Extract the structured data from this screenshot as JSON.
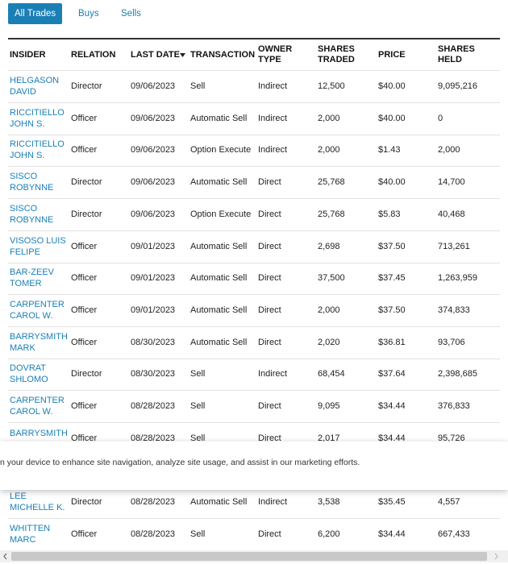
{
  "tabs": [
    "All Trades",
    "Buys",
    "Sells"
  ],
  "table": {
    "columns": [
      "INSIDER",
      "RELATION",
      "LAST DATE",
      "TRANSACTION",
      "OWNER TYPE",
      "SHARES TRADED",
      "PRICE",
      "SHARES HELD"
    ],
    "rows": [
      [
        "HELGASON DAVID",
        "Director",
        "09/06/2023",
        "Sell",
        "Indirect",
        "12,500",
        "$40.00",
        "9,095,216"
      ],
      [
        "RICCITIELLO JOHN S.",
        "Officer",
        "09/06/2023",
        "Automatic Sell",
        "Indirect",
        "2,000",
        "$40.00",
        "0"
      ],
      [
        "RICCITIELLO JOHN S.",
        "Officer",
        "09/06/2023",
        "Option Execute",
        "Indirect",
        "2,000",
        "$1.43",
        "2,000"
      ],
      [
        "SISCO ROBYNNE",
        "Director",
        "09/06/2023",
        "Automatic Sell",
        "Direct",
        "25,768",
        "$40.00",
        "14,700"
      ],
      [
        "SISCO ROBYNNE",
        "Director",
        "09/06/2023",
        "Option Execute",
        "Direct",
        "25,768",
        "$5.83",
        "40,468"
      ],
      [
        "VISOSO LUIS FELIPE",
        "Officer",
        "09/01/2023",
        "Automatic Sell",
        "Direct",
        "2,698",
        "$37.50",
        "713,261"
      ],
      [
        "BAR-ZEEV TOMER",
        "Officer",
        "09/01/2023",
        "Automatic Sell",
        "Direct",
        "37,500",
        "$37.45",
        "1,263,959"
      ],
      [
        "CARPENTER CAROL W.",
        "Officer",
        "09/01/2023",
        "Automatic Sell",
        "Direct",
        "2,000",
        "$37.50",
        "374,833"
      ],
      [
        "BARRYSMITH MARK",
        "Officer",
        "08/30/2023",
        "Automatic Sell",
        "Direct",
        "2,020",
        "$36.81",
        "93,706"
      ],
      [
        "DOVRAT SHLOMO",
        "Director",
        "08/30/2023",
        "Sell",
        "Indirect",
        "68,454",
        "$37.64",
        "2,398,685"
      ],
      [
        "CARPENTER CAROL W.",
        "Officer",
        "08/28/2023",
        "Sell",
        "Direct",
        "9,095",
        "$34.44",
        "376,833"
      ],
      [
        "BARRYSMITH",
        "Officer",
        "08/28/2023",
        "Sell",
        "Direct",
        "2,017",
        "$34.44",
        "95,726"
      ],
      [
        "LEE MICHELLE K.",
        "Director",
        "08/28/2023",
        "Automatic Sell",
        "Indirect",
        "3,538",
        "$35.45",
        "4,557"
      ],
      [
        "WHITTEN MARC",
        "Officer",
        "08/28/2023",
        "Sell",
        "Direct",
        "6,200",
        "$34.44",
        "667,433"
      ]
    ]
  },
  "cookie_banner": {
    "text": "n your device to enhance site navigation, analyze site usage, and assist in our marketing efforts."
  }
}
